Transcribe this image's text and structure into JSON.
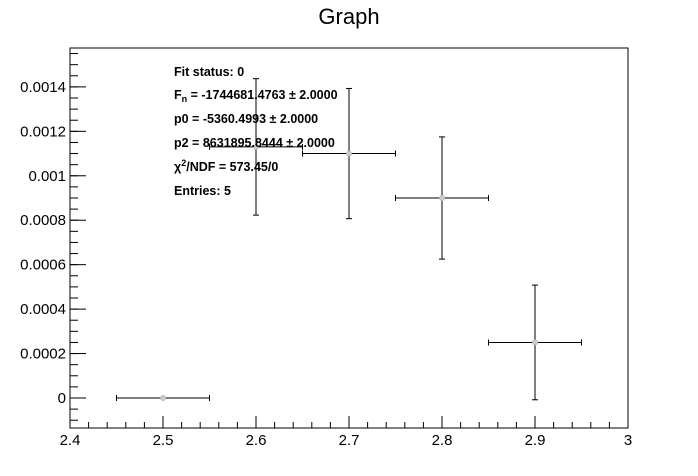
{
  "chart_data": {
    "type": "scatter",
    "title": "Graph",
    "xlabel": "",
    "ylabel": "",
    "xlim": [
      2.4,
      3.0
    ],
    "ylim": [
      -0.000135,
      0.001575
    ],
    "x_ticks": [
      "2.4",
      "2.5",
      "2.6",
      "2.7",
      "2.8",
      "2.9",
      "3"
    ],
    "x_tick_values": [
      2.4,
      2.5,
      2.6,
      2.7,
      2.8,
      2.9,
      3.0
    ],
    "y_ticks": [
      "0",
      "0.0002",
      "0.0004",
      "0.0006",
      "0.0008",
      "0.001",
      "0.0012",
      "0.0014"
    ],
    "y_tick_values": [
      0,
      0.0002,
      0.0004,
      0.0006,
      0.0008,
      0.001,
      0.0012,
      0.0014
    ],
    "points": [
      {
        "x": 2.5,
        "y": 0.0,
        "ex": 0.05,
        "ey": 0.0
      },
      {
        "x": 2.6,
        "y": 0.00113,
        "ex": 0.05,
        "ey": 0.000307
      },
      {
        "x": 2.7,
        "y": 0.0011,
        "ex": 0.05,
        "ey": 0.000293
      },
      {
        "x": 2.8,
        "y": 0.0009,
        "ex": 0.05,
        "ey": 0.000275
      },
      {
        "x": 2.9,
        "y": 0.00025,
        "ex": 0.05,
        "ey": 0.000258
      }
    ],
    "marker_color": "#cccccc",
    "line_color": "#000000",
    "stats_box": {
      "fit_status": "Fit status: 0",
      "fn_label": "F",
      "fn_sub": "n",
      "fn_value": " = -1744681.4763   ± 2.0000",
      "p0": "p0 = -5360.4993   ± 2.0000",
      "p2": "p2 = 8631895.8444   ± 2.0000",
      "chi_label": "χ",
      "chi_sup": "2",
      "chi_value": "/NDF = 573.45/0",
      "entries": "Entries: 5"
    }
  }
}
